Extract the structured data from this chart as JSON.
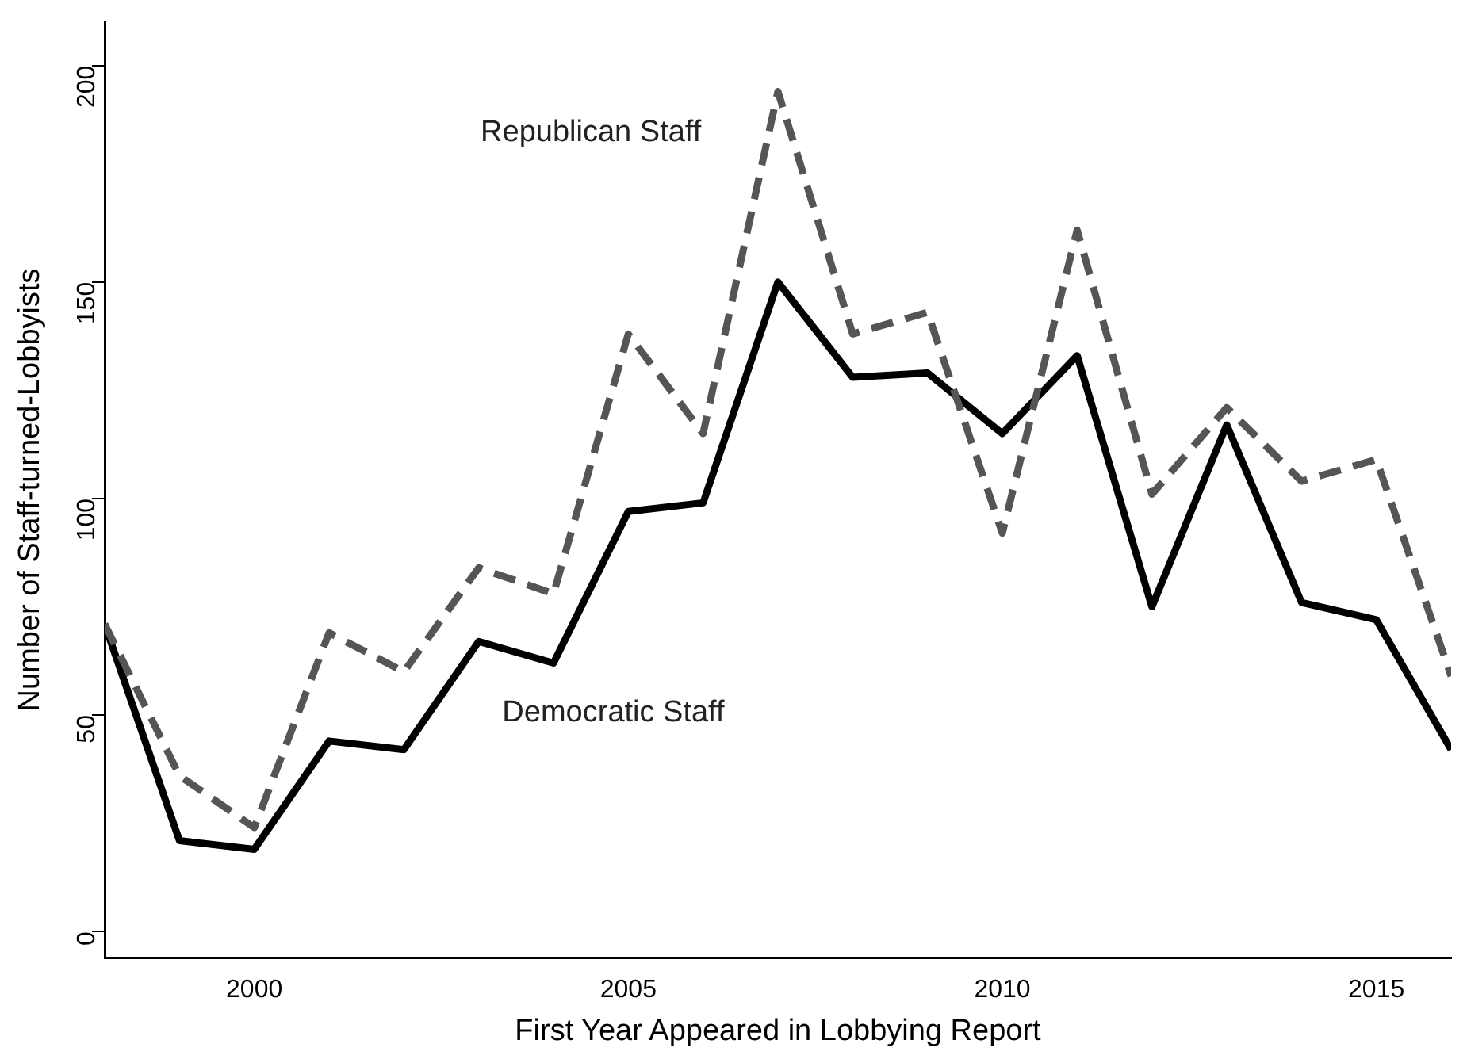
{
  "chart_data": {
    "type": "line",
    "xlabel": "First Year Appeared in Lobbying Report",
    "ylabel": "Number of Staff-turned-Lobbyists",
    "x": [
      1998,
      1999,
      2000,
      2001,
      2002,
      2003,
      2004,
      2005,
      2006,
      2007,
      2008,
      2009,
      2010,
      2011,
      2012,
      2013,
      2014,
      2015,
      2016
    ],
    "series": [
      {
        "name": "Republican Staff",
        "color": "#555555",
        "line_style": "dashed",
        "values": [
          71,
          36,
          24,
          69,
          60,
          84,
          78,
          138,
          115,
          194,
          138,
          143,
          92,
          162,
          101,
          121,
          104,
          109,
          59
        ]
      },
      {
        "name": "Democratic Staff",
        "color": "#000000",
        "line_style": "solid",
        "values": [
          71,
          21,
          19,
          44,
          42,
          67,
          62,
          97,
          99,
          150,
          128,
          129,
          115,
          133,
          75,
          117,
          76,
          72,
          42
        ]
      }
    ],
    "xlim": [
      1998,
      2016
    ],
    "xticks": [
      2000,
      2005,
      2010,
      2015
    ],
    "ylim": [
      -6,
      210
    ],
    "yticks": [
      0,
      50,
      100,
      150,
      200
    ],
    "grid": false,
    "legend": false,
    "marker": "none"
  }
}
